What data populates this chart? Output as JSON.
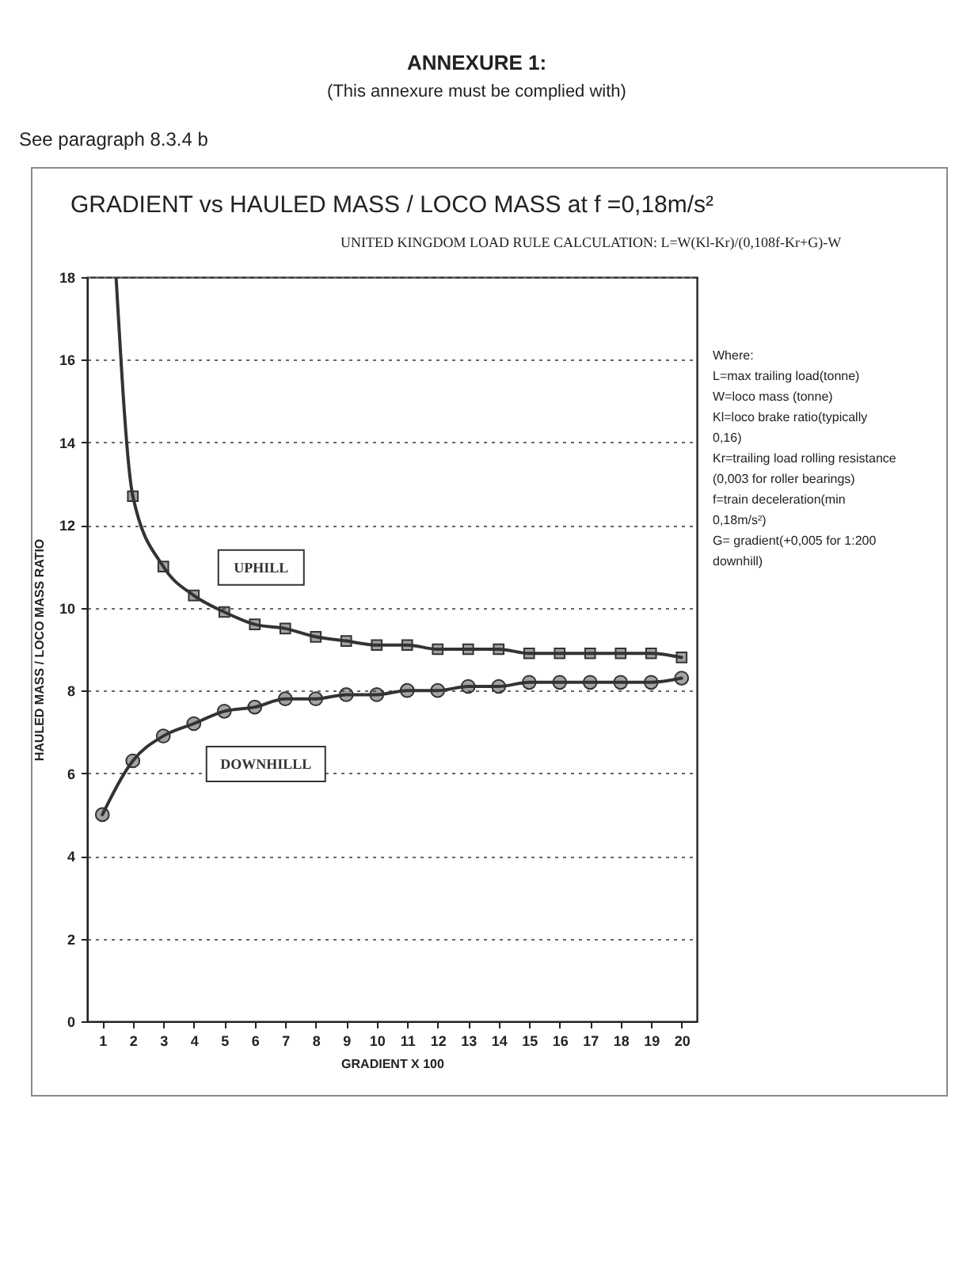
{
  "chart_data": {
    "type": "line",
    "title": "GRADIENT vs HAULED MASS / LOCO MASS at  f =0,18m/s²",
    "subtitle": "UNITED KINGDOM LOAD RULE CALCULATION:   L=W(Kl-Kr)/(0,108f-Kr+G)-W",
    "xlabel": "GRADIENT X 100",
    "ylabel": "HAULED MASS / LOCO MASS RATIO",
    "annotations": [
      "ANNEXURE 1:",
      "(This annexure must be complied with)",
      "See paragraph 8.3.4 b",
      "Where:\nL=max trailing load(tonne)\nW=loco mass (tonne)\nKl=loco brake ratio(typically\n0,16)\nKr=trailing load rolling resistance\n(0,003 for roller bearings)\nf=train deceleration(min\n0,18m/s²)\nG= gradient(+0,005 for 1:200\ndownhill)"
    ],
    "xlim": [
      0.5,
      20.5
    ],
    "xticks": [
      1,
      2,
      3,
      4,
      5,
      6,
      7,
      8,
      9,
      10,
      11,
      12,
      13,
      14,
      15,
      16,
      17,
      18,
      19,
      20
    ],
    "ylim": [
      0,
      18
    ],
    "yticks": [
      0,
      2,
      4,
      6,
      8,
      10,
      12,
      14,
      16,
      18
    ],
    "grid": "y",
    "series": [
      {
        "name": "UPHILL",
        "color": "#333333",
        "marker": "square",
        "x": [
          1.45,
          2,
          3,
          4,
          5,
          6,
          7,
          8,
          9,
          10,
          11,
          12,
          13,
          14,
          15,
          16,
          17,
          18,
          19,
          20
        ],
        "values": [
          18,
          12.7,
          11.0,
          10.3,
          9.9,
          9.6,
          9.5,
          9.3,
          9.2,
          9.1,
          9.1,
          9.0,
          9.0,
          9.0,
          8.9,
          8.9,
          8.9,
          8.9,
          8.9,
          8.8
        ]
      },
      {
        "name": "DOWNHILLL",
        "color": "#333333",
        "marker": "circle",
        "x": [
          1,
          2,
          3,
          4,
          5,
          6,
          7,
          8,
          9,
          10,
          11,
          12,
          13,
          14,
          15,
          16,
          17,
          18,
          19,
          20
        ],
        "values": [
          5.0,
          6.3,
          6.9,
          7.2,
          7.5,
          7.6,
          7.8,
          7.8,
          7.9,
          7.9,
          8.0,
          8.0,
          8.1,
          8.1,
          8.2,
          8.2,
          8.2,
          8.2,
          8.2,
          8.3
        ]
      }
    ]
  }
}
